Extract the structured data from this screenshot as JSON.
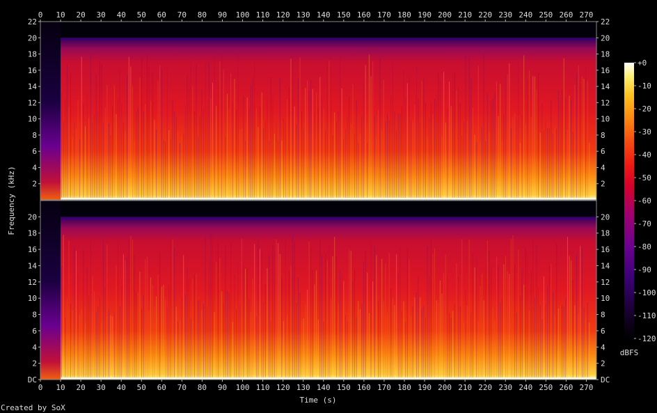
{
  "chart_data": {
    "type": "heatmap",
    "subtype": "spectrogram",
    "channels": 2,
    "xlabel": "Time (s)",
    "ylabel": "Frequency (kHz)",
    "xlim": [
      0,
      275
    ],
    "ylim": [
      0,
      22
    ],
    "x_ticks": [
      "0",
      "10",
      "20",
      "30",
      "40",
      "50",
      "60",
      "70",
      "80",
      "90",
      "100",
      "110",
      "120",
      "130",
      "140",
      "150",
      "160",
      "170",
      "180",
      "190",
      "200",
      "210",
      "220",
      "230",
      "240",
      "250",
      "260",
      "270"
    ],
    "y_ticks_top": [
      "2",
      "4",
      "6",
      "8",
      "10",
      "12",
      "14",
      "16",
      "18",
      "20",
      "22"
    ],
    "y_ticks_bottom": [
      "DC",
      "2",
      "4",
      "6",
      "8",
      "10",
      "12",
      "14",
      "16",
      "18",
      "20"
    ],
    "colorbar": {
      "label": "dBFS",
      "range": [
        -120,
        0
      ],
      "ticks": [
        "+0",
        "-10",
        "-20",
        "-30",
        "-40",
        "-50",
        "-60",
        "-70",
        "-80",
        "-90",
        "-100",
        "-110",
        "-120"
      ],
      "colors": [
        "#000000",
        "#1a0033",
        "#3a0077",
        "#6a0090",
        "#a00070",
        "#d4002c",
        "#ef1a14",
        "#f75010",
        "#fb8a10",
        "#fdc020",
        "#fff070",
        "#ffffff"
      ]
    },
    "regions": [
      {
        "time": [
          0,
          10
        ],
        "level_dbfs": -110,
        "note_color": "quiet intro (dark blue/purple)"
      },
      {
        "time": [
          10,
          275
        ],
        "level_dbfs": -45,
        "max_freq_khz": 20
      }
    ],
    "cutoff_khz": 20
  },
  "credit": "Created by SoX"
}
